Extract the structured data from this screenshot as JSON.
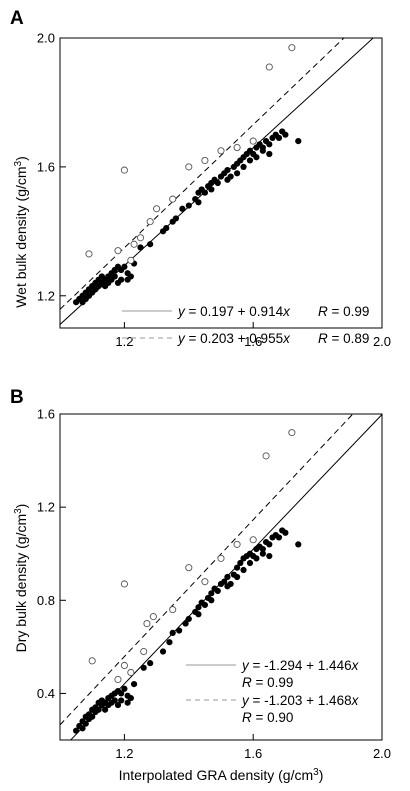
{
  "chart_data": [
    {
      "type": "scatter",
      "panel_label": "A",
      "xlabel": "",
      "ylabel": "Wet bulk density (g/cm³)",
      "ylabel_main": "Wet bulk density (g/cm",
      "ylabel_sup": "3",
      "ylabel_close": ")",
      "xlim": [
        1.0,
        2.0
      ],
      "ylim": [
        1.1,
        2.0
      ],
      "x_ticks": [
        1.2,
        1.6,
        2.0
      ],
      "y_ticks": [
        1.2,
        1.6,
        2.0
      ],
      "x_tick_labels": [
        "1.2",
        "1.6",
        "2.0"
      ],
      "y_tick_labels": [
        "1.2",
        "1.6",
        "2.0"
      ],
      "grid": false,
      "series": [
        {
          "marker": "filled-circle",
          "color": "#000000",
          "points": [
            [
              1.05,
              1.18
            ],
            [
              1.06,
              1.19
            ],
            [
              1.07,
              1.18
            ],
            [
              1.07,
              1.2
            ],
            [
              1.08,
              1.19
            ],
            [
              1.08,
              1.21
            ],
            [
              1.09,
              1.2
            ],
            [
              1.09,
              1.22
            ],
            [
              1.1,
              1.21
            ],
            [
              1.1,
              1.23
            ],
            [
              1.11,
              1.22
            ],
            [
              1.11,
              1.24
            ],
            [
              1.12,
              1.23
            ],
            [
              1.12,
              1.25
            ],
            [
              1.13,
              1.24
            ],
            [
              1.13,
              1.26
            ],
            [
              1.14,
              1.25
            ],
            [
              1.14,
              1.23
            ],
            [
              1.15,
              1.26
            ],
            [
              1.15,
              1.24
            ],
            [
              1.16,
              1.27
            ],
            [
              1.16,
              1.25
            ],
            [
              1.17,
              1.26
            ],
            [
              1.17,
              1.28
            ],
            [
              1.18,
              1.24
            ],
            [
              1.18,
              1.29
            ],
            [
              1.19,
              1.28
            ],
            [
              1.19,
              1.25
            ],
            [
              1.2,
              1.29
            ],
            [
              1.21,
              1.27
            ],
            [
              1.21,
              1.25
            ],
            [
              1.22,
              1.26
            ],
            [
              1.23,
              1.3
            ],
            [
              1.25,
              1.35
            ],
            [
              1.28,
              1.36
            ],
            [
              1.32,
              1.4
            ],
            [
              1.33,
              1.41
            ],
            [
              1.35,
              1.43
            ],
            [
              1.36,
              1.44
            ],
            [
              1.38,
              1.47
            ],
            [
              1.4,
              1.48
            ],
            [
              1.42,
              1.5
            ],
            [
              1.43,
              1.52
            ],
            [
              1.44,
              1.53
            ],
            [
              1.45,
              1.52
            ],
            [
              1.46,
              1.54
            ],
            [
              1.47,
              1.55
            ],
            [
              1.48,
              1.56
            ],
            [
              1.49,
              1.55
            ],
            [
              1.5,
              1.57
            ],
            [
              1.51,
              1.58
            ],
            [
              1.52,
              1.59
            ],
            [
              1.53,
              1.57
            ],
            [
              1.54,
              1.6
            ],
            [
              1.55,
              1.61
            ],
            [
              1.56,
              1.62
            ],
            [
              1.57,
              1.63
            ],
            [
              1.58,
              1.64
            ],
            [
              1.59,
              1.65
            ],
            [
              1.6,
              1.64
            ],
            [
              1.61,
              1.66
            ],
            [
              1.62,
              1.67
            ],
            [
              1.63,
              1.66
            ],
            [
              1.64,
              1.68
            ],
            [
              1.65,
              1.67
            ],
            [
              1.66,
              1.69
            ],
            [
              1.67,
              1.7
            ],
            [
              1.68,
              1.69
            ],
            [
              1.69,
              1.71
            ],
            [
              1.7,
              1.7
            ],
            [
              1.74,
              1.68
            ],
            [
              1.55,
              1.58
            ],
            [
              1.57,
              1.6
            ],
            [
              1.59,
              1.62
            ],
            [
              1.61,
              1.63
            ],
            [
              1.63,
              1.65
            ],
            [
              1.65,
              1.64
            ],
            [
              1.47,
              1.53
            ],
            [
              1.43,
              1.49
            ],
            [
              1.52,
              1.56
            ]
          ]
        },
        {
          "marker": "open-circle",
          "color": "#000000",
          "points": [
            [
              1.09,
              1.33
            ],
            [
              1.2,
              1.59
            ],
            [
              1.22,
              1.31
            ],
            [
              1.23,
              1.36
            ],
            [
              1.25,
              1.38
            ],
            [
              1.28,
              1.43
            ],
            [
              1.3,
              1.47
            ],
            [
              1.35,
              1.5
            ],
            [
              1.4,
              1.6
            ],
            [
              1.45,
              1.62
            ],
            [
              1.5,
              1.65
            ],
            [
              1.55,
              1.66
            ],
            [
              1.65,
              1.91
            ],
            [
              1.72,
              1.97
            ],
            [
              1.6,
              1.68
            ],
            [
              1.18,
              1.34
            ]
          ]
        }
      ],
      "fit_lines": [
        {
          "style": "solid",
          "intercept": 0.197,
          "slope": 0.914
        },
        {
          "style": "dashed",
          "intercept": 0.203,
          "slope": 0.955
        }
      ],
      "legend": [
        {
          "style": "solid",
          "eq_y": "y",
          "eq_mid": " = 0.197 + 0.914",
          "eq_x": "x",
          "r_label": "R",
          "r_value": " = 0.99"
        },
        {
          "style": "dashed",
          "eq_y": "y",
          "eq_mid": " = 0.203 + 0.955",
          "eq_x": "x",
          "r_label": "R",
          "r_value": " = 0.89"
        }
      ],
      "legend_placement": "bottom-right"
    },
    {
      "type": "scatter",
      "panel_label": "B",
      "xlabel": "Interpolated GRA density (g/cm³)",
      "xlabel_main": "Interpolated GRA density (g/cm",
      "xlabel_sup": "3",
      "xlabel_close": ")",
      "ylabel": "Dry bulk density (g/cm³)",
      "ylabel_main": "Dry bulk density (g/cm",
      "ylabel_sup": "3",
      "ylabel_close": ")",
      "xlim": [
        1.0,
        2.0
      ],
      "ylim": [
        0.2,
        1.6
      ],
      "x_ticks": [
        1.2,
        1.6,
        2.0
      ],
      "y_ticks": [
        0.4,
        0.8,
        1.2,
        1.6
      ],
      "x_tick_labels": [
        "1.2",
        "1.6",
        "2.0"
      ],
      "y_tick_labels": [
        "0.4",
        "0.8",
        "1.2",
        "1.6"
      ],
      "grid": false,
      "series": [
        {
          "marker": "filled-circle",
          "color": "#000000",
          "points": [
            [
              1.05,
              0.24
            ],
            [
              1.06,
              0.26
            ],
            [
              1.07,
              0.25
            ],
            [
              1.07,
              0.28
            ],
            [
              1.08,
              0.27
            ],
            [
              1.08,
              0.3
            ],
            [
              1.09,
              0.29
            ],
            [
              1.09,
              0.31
            ],
            [
              1.1,
              0.3
            ],
            [
              1.1,
              0.33
            ],
            [
              1.11,
              0.32
            ],
            [
              1.11,
              0.34
            ],
            [
              1.12,
              0.33
            ],
            [
              1.12,
              0.36
            ],
            [
              1.13,
              0.35
            ],
            [
              1.13,
              0.37
            ],
            [
              1.14,
              0.36
            ],
            [
              1.14,
              0.33
            ],
            [
              1.15,
              0.38
            ],
            [
              1.15,
              0.35
            ],
            [
              1.16,
              0.39
            ],
            [
              1.16,
              0.36
            ],
            [
              1.17,
              0.37
            ],
            [
              1.17,
              0.4
            ],
            [
              1.18,
              0.35
            ],
            [
              1.18,
              0.41
            ],
            [
              1.19,
              0.4
            ],
            [
              1.19,
              0.37
            ],
            [
              1.2,
              0.42
            ],
            [
              1.21,
              0.39
            ],
            [
              1.21,
              0.36
            ],
            [
              1.22,
              0.38
            ],
            [
              1.23,
              0.44
            ],
            [
              1.26,
              0.51
            ],
            [
              1.28,
              0.53
            ],
            [
              1.32,
              0.58
            ],
            [
              1.34,
              0.62
            ],
            [
              1.35,
              0.66
            ],
            [
              1.37,
              0.67
            ],
            [
              1.39,
              0.7
            ],
            [
              1.4,
              0.72
            ],
            [
              1.42,
              0.75
            ],
            [
              1.43,
              0.77
            ],
            [
              1.44,
              0.79
            ],
            [
              1.45,
              0.78
            ],
            [
              1.46,
              0.81
            ],
            [
              1.47,
              0.83
            ],
            [
              1.48,
              0.85
            ],
            [
              1.49,
              0.84
            ],
            [
              1.5,
              0.87
            ],
            [
              1.51,
              0.88
            ],
            [
              1.52,
              0.9
            ],
            [
              1.53,
              0.87
            ],
            [
              1.54,
              0.91
            ],
            [
              1.55,
              0.94
            ],
            [
              1.56,
              0.96
            ],
            [
              1.57,
              0.98
            ],
            [
              1.58,
              0.99
            ],
            [
              1.59,
              1.0
            ],
            [
              1.6,
              0.99
            ],
            [
              1.61,
              1.02
            ],
            [
              1.62,
              1.03
            ],
            [
              1.63,
              1.02
            ],
            [
              1.64,
              1.05
            ],
            [
              1.65,
              1.04
            ],
            [
              1.66,
              1.07
            ],
            [
              1.67,
              1.08
            ],
            [
              1.68,
              1.07
            ],
            [
              1.69,
              1.1
            ],
            [
              1.7,
              1.09
            ],
            [
              1.74,
              1.04
            ],
            [
              1.55,
              0.9
            ],
            [
              1.57,
              0.93
            ],
            [
              1.59,
              0.96
            ],
            [
              1.61,
              0.98
            ],
            [
              1.63,
              1.0
            ],
            [
              1.65,
              0.99
            ],
            [
              1.47,
              0.8
            ],
            [
              1.43,
              0.74
            ],
            [
              1.52,
              0.86
            ]
          ]
        },
        {
          "marker": "open-circle",
          "color": "#000000",
          "points": [
            [
              1.1,
              0.54
            ],
            [
              1.2,
              0.87
            ],
            [
              1.2,
              0.52
            ],
            [
              1.22,
              0.49
            ],
            [
              1.26,
              0.58
            ],
            [
              1.27,
              0.7
            ],
            [
              1.29,
              0.73
            ],
            [
              1.35,
              0.76
            ],
            [
              1.4,
              0.94
            ],
            [
              1.45,
              0.88
            ],
            [
              1.5,
              0.98
            ],
            [
              1.55,
              1.04
            ],
            [
              1.64,
              1.42
            ],
            [
              1.72,
              1.52
            ],
            [
              1.6,
              1.06
            ],
            [
              1.18,
              0.46
            ]
          ]
        }
      ],
      "fit_lines": [
        {
          "style": "solid",
          "intercept": -1.294,
          "slope": 1.446
        },
        {
          "style": "dashed",
          "intercept": -1.203,
          "slope": 1.468
        }
      ],
      "legend": [
        {
          "style": "solid",
          "eq_y": "y",
          "eq_mid": " = -1.294 + 1.446",
          "eq_x": "x",
          "r_label": "R",
          "r_value": " = 0.99"
        },
        {
          "style": "dashed",
          "eq_y": "y",
          "eq_mid": " = -1.203 + 1.468",
          "eq_x": "x",
          "r_label": "R",
          "r_value": " = 0.90"
        }
      ],
      "legend_placement": "bottom-right"
    }
  ]
}
